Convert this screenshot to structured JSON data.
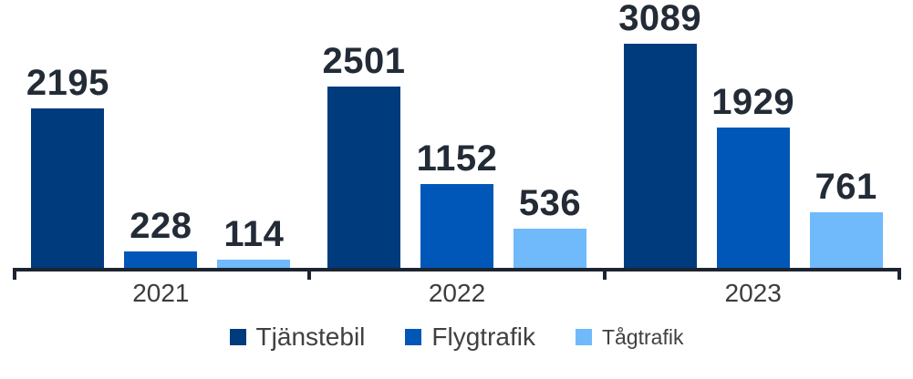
{
  "chart_data": {
    "type": "bar",
    "title": "",
    "xlabel": "",
    "ylabel": "",
    "categories": [
      "2021",
      "2022",
      "2023"
    ],
    "series": [
      {
        "name": "Tjänstebil",
        "color": "#003b7e",
        "values": [
          2195,
          2501,
          3089
        ]
      },
      {
        "name": "Flygtrafik",
        "color": "#0057b8",
        "values": [
          228,
          1152,
          1929
        ]
      },
      {
        "name": "Tågtrafik",
        "color": "#70b9fb",
        "values": [
          114,
          536,
          761
        ]
      }
    ],
    "ylim": [
      0,
      3089
    ],
    "grid": false,
    "y_axis_visible": false,
    "data_labels": true,
    "data_label_color": "#222b36",
    "axis_line_color": "#1c2430",
    "tick_positions": [
      "group-boundaries"
    ],
    "legend_position": "bottom"
  }
}
